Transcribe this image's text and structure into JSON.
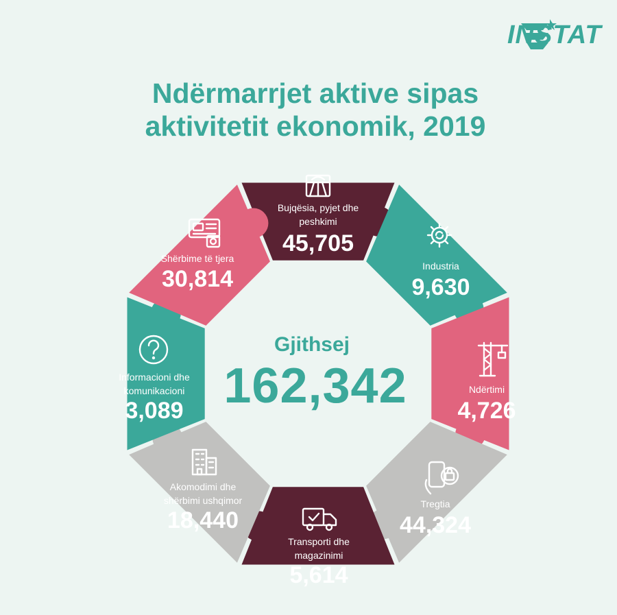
{
  "brand": {
    "logo_text": "INSTAT"
  },
  "title": {
    "line1": "Ndërmarrjet aktive sipas",
    "line2": "aktivitetit ekonomik, 2019"
  },
  "total": {
    "label": "Gjithsej",
    "value": "162,342"
  },
  "colors": {
    "maroon": "#5a2233",
    "teal": "#3ba89a",
    "pink": "#e1647e",
    "gray": "#c1c1bf",
    "background": "#edf5f2"
  },
  "chart_data": {
    "type": "infographic-donut",
    "title": "Ndërmarrjet aktive sipas aktivitetit ekonomik, 2019",
    "total_label": "Gjithsej",
    "total": 162342,
    "segments": [
      {
        "label": "Bujqësia, pyjet dhe peshkimi",
        "value": 45705,
        "display": "45,705",
        "color": "#5a2233",
        "icon": "field-icon"
      },
      {
        "label": "Industria",
        "value": 9630,
        "display": "9,630",
        "color": "#3ba89a",
        "icon": "gear-icon"
      },
      {
        "label": "Ndërtimi",
        "value": 4726,
        "display": "4,726",
        "color": "#e1647e",
        "icon": "crane-icon"
      },
      {
        "label": "Tregtia",
        "value": 44324,
        "display": "44,324",
        "color": "#c1c1bf",
        "icon": "shopping-phone-icon"
      },
      {
        "label": "Transporti dhe magazinimi",
        "value": 5614,
        "display": "5,614",
        "color": "#5a2233",
        "icon": "truck-icon"
      },
      {
        "label": "Akomodimi dhe shërbimi ushqimor",
        "value": 18440,
        "display": "18,440",
        "color": "#c1c1bf",
        "icon": "hotel-icon"
      },
      {
        "label": "Informacioni dhe komunikacioni",
        "value": 3089,
        "display": "3,089",
        "color": "#3ba89a",
        "icon": "question-icon"
      },
      {
        "label": "Shërbime të tjera",
        "value": 30814,
        "display": "30,814",
        "color": "#e1647e",
        "icon": "services-icon"
      }
    ]
  }
}
